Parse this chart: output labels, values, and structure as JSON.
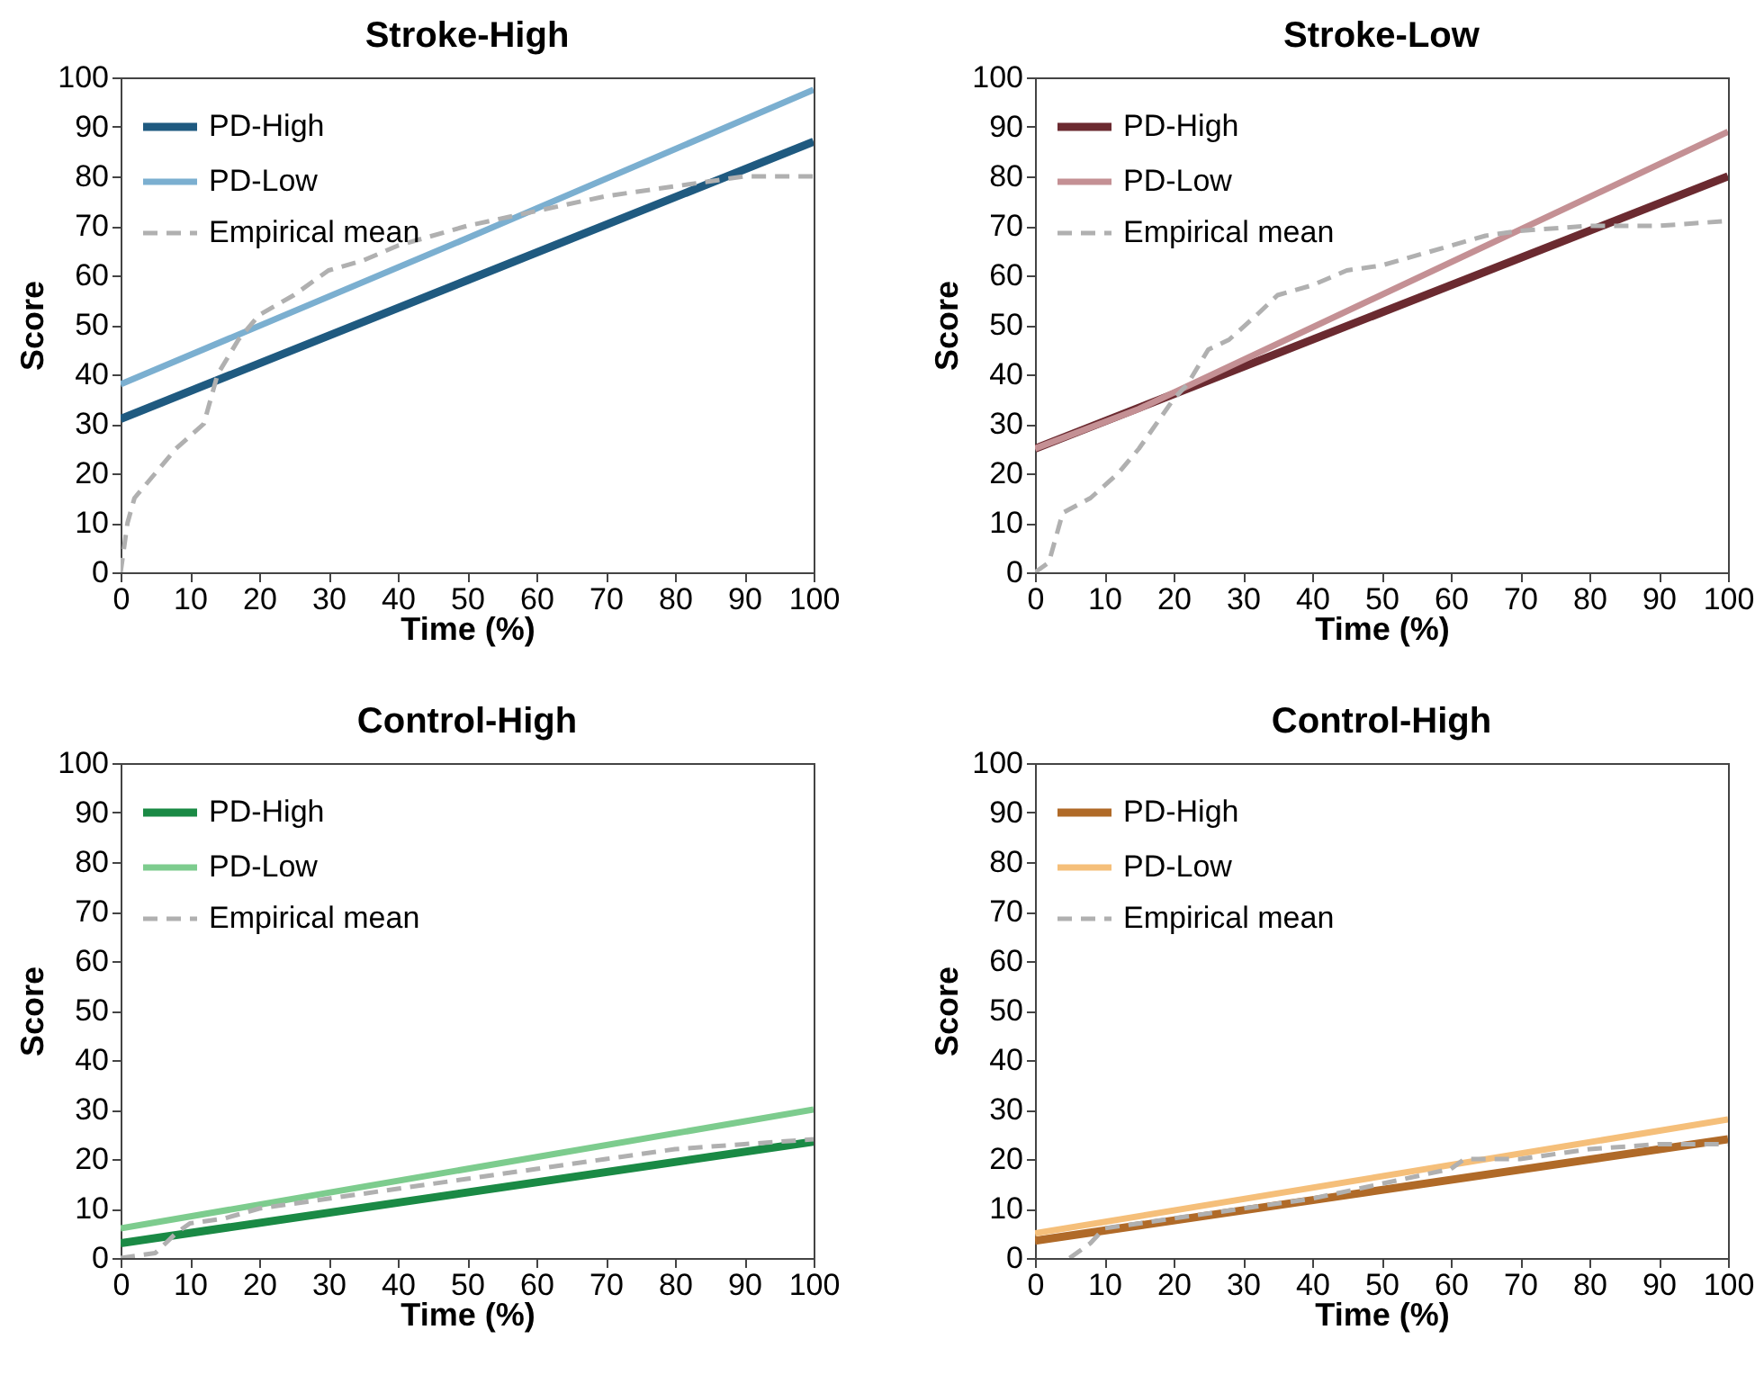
{
  "chart_data": [
    {
      "type": "line",
      "title": "Stroke-High",
      "xlabel": "Time (%)",
      "ylabel": "Score",
      "xlim": [
        0,
        100
      ],
      "ylim": [
        0,
        100
      ],
      "xticks": [
        0,
        10,
        20,
        30,
        40,
        50,
        60,
        70,
        80,
        90,
        100
      ],
      "yticks": [
        0,
        10,
        20,
        30,
        40,
        50,
        60,
        70,
        80,
        90,
        100
      ],
      "grid": false,
      "legend": "top left",
      "series": [
        {
          "name": "PD-High",
          "color": "#1f5a80",
          "line_style": "solid",
          "x": [
            0,
            50,
            100
          ],
          "values": [
            31,
            59,
            87
          ]
        },
        {
          "name": "PD-Low",
          "color": "#7bafd0",
          "line_style": "solid",
          "x": [
            0,
            50,
            100
          ],
          "values": [
            38,
            67.5,
            97.5
          ]
        },
        {
          "name": "Empirical mean",
          "color": "#b0b0b0",
          "line_style": "dashed",
          "x": [
            0,
            1,
            2,
            5,
            8,
            12,
            14,
            17,
            20,
            25,
            30,
            35,
            40,
            50,
            60,
            70,
            80,
            90,
            100
          ],
          "values": [
            0,
            10,
            15,
            20,
            25,
            30,
            40,
            47,
            52,
            56,
            61,
            63,
            66,
            70,
            73,
            76,
            78,
            80,
            80
          ]
        }
      ]
    },
    {
      "type": "line",
      "title": "Stroke-Low",
      "xlabel": "Time (%)",
      "ylabel": "Score",
      "xlim": [
        0,
        100
      ],
      "ylim": [
        0,
        100
      ],
      "xticks": [
        0,
        10,
        20,
        30,
        40,
        50,
        60,
        70,
        80,
        90,
        100
      ],
      "yticks": [
        0,
        10,
        20,
        30,
        40,
        50,
        60,
        70,
        80,
        90,
        100
      ],
      "grid": false,
      "legend": "top left",
      "series": [
        {
          "name": "PD-High",
          "color": "#6b2a30",
          "line_style": "solid",
          "x": [
            0,
            50,
            100
          ],
          "values": [
            25,
            52.5,
            80
          ]
        },
        {
          "name": "PD-Low",
          "color": "#c49094",
          "line_style": "solid",
          "x": [
            0,
            15,
            100
          ],
          "values": [
            25,
            33,
            89
          ]
        },
        {
          "name": "Empirical mean",
          "color": "#b0b0b0",
          "line_style": "dashed",
          "x": [
            0,
            2,
            4,
            8,
            12,
            15,
            18,
            20,
            22,
            25,
            28,
            32,
            35,
            40,
            45,
            50,
            60,
            65,
            70,
            80,
            90,
            100
          ],
          "values": [
            0,
            2,
            12,
            15,
            20,
            25,
            31,
            35,
            38,
            45,
            47,
            52,
            56,
            58,
            61,
            62,
            66,
            68,
            69,
            70,
            70,
            71
          ]
        }
      ]
    },
    {
      "type": "line",
      "title": "Control-High",
      "xlabel": "Time (%)",
      "ylabel": "Score",
      "xlim": [
        0,
        100
      ],
      "ylim": [
        0,
        100
      ],
      "xticks": [
        0,
        10,
        20,
        30,
        40,
        50,
        60,
        70,
        80,
        90,
        100
      ],
      "yticks": [
        0,
        10,
        20,
        30,
        40,
        50,
        60,
        70,
        80,
        90,
        100
      ],
      "grid": false,
      "legend": "top left",
      "series": [
        {
          "name": "PD-High",
          "color": "#1a8a45",
          "line_style": "solid",
          "x": [
            0,
            100
          ],
          "values": [
            3,
            23.5
          ]
        },
        {
          "name": "PD-Low",
          "color": "#7dcc8e",
          "line_style": "solid",
          "x": [
            0,
            100
          ],
          "values": [
            6,
            30
          ]
        },
        {
          "name": "Empirical mean",
          "color": "#b0b0b0",
          "line_style": "dashed",
          "x": [
            0,
            5,
            8,
            10,
            15,
            20,
            30,
            40,
            50,
            60,
            70,
            80,
            90,
            100
          ],
          "values": [
            0,
            1,
            5,
            7,
            8,
            10,
            12,
            14,
            16,
            18,
            20,
            22,
            23,
            24
          ]
        }
      ]
    },
    {
      "type": "line",
      "title": "Control-High",
      "xlabel": "Time (%)",
      "ylabel": "Score",
      "xlim": [
        0,
        100
      ],
      "ylim": [
        0,
        100
      ],
      "xticks": [
        0,
        10,
        20,
        30,
        40,
        50,
        60,
        70,
        80,
        90,
        100
      ],
      "yticks": [
        0,
        10,
        20,
        30,
        40,
        50,
        60,
        70,
        80,
        90,
        100
      ],
      "grid": false,
      "legend": "top left",
      "series": [
        {
          "name": "PD-High",
          "color": "#b06a28",
          "line_style": "solid",
          "x": [
            0,
            100
          ],
          "values": [
            3.5,
            24
          ]
        },
        {
          "name": "PD-Low",
          "color": "#f5bf7a",
          "line_style": "solid",
          "x": [
            0,
            100
          ],
          "values": [
            5,
            28
          ]
        },
        {
          "name": "Empirical mean",
          "color": "#b0b0b0",
          "line_style": "dashed",
          "x": [
            5,
            8,
            10,
            20,
            30,
            40,
            50,
            60,
            62,
            70,
            80,
            90,
            100
          ],
          "values": [
            0,
            3,
            6,
            8,
            10,
            12,
            15,
            18,
            20,
            20,
            22,
            23,
            23
          ]
        }
      ]
    }
  ]
}
